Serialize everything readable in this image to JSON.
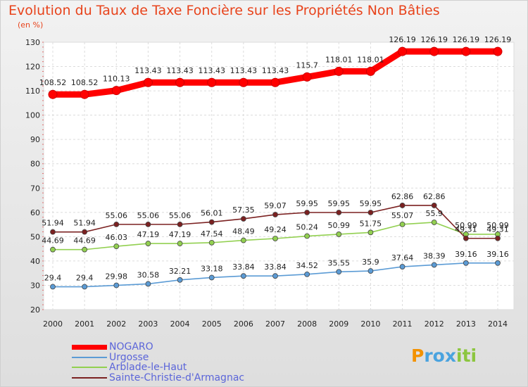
{
  "header": {
    "title": "Evolution du Taux de Taxe Foncière sur les Propriétés Non Bâties",
    "unit": "(en %)"
  },
  "chart_data": {
    "type": "line",
    "title": "Evolution du Taux de Taxe Foncière sur les Propriétés Non Bâties",
    "ylabel": "(en %)",
    "xlabel": "",
    "ylim": [
      20,
      130
    ],
    "yticks": [
      20,
      30,
      40,
      50,
      60,
      70,
      80,
      90,
      100,
      110,
      120,
      130
    ],
    "grid": true,
    "legend_position": "bottom-left",
    "x": [
      "2000",
      "2001",
      "2002",
      "2003",
      "2004",
      "2005",
      "2006",
      "2007",
      "2008",
      "2009",
      "2010",
      "2011",
      "2012",
      "2013",
      "2014"
    ],
    "series": [
      {
        "name": "NOGARO",
        "color": "#ff0000",
        "values": [
          108.52,
          108.52,
          110.13,
          113.43,
          113.43,
          113.43,
          113.43,
          113.43,
          115.7,
          118.01,
          118.01,
          126.19,
          126.19,
          126.19,
          126.19
        ],
        "labels": [
          "108.52",
          "108.52",
          "110.13",
          "113.43",
          "113.43",
          "113.43",
          "113.43",
          "113.43",
          "115.7",
          "118.01",
          "118.01",
          "126.19",
          "126.19",
          "126.19",
          "126.19"
        ]
      },
      {
        "name": "Urgosse",
        "color": "#5b9bd5",
        "values": [
          29.4,
          29.4,
          29.98,
          30.58,
          32.21,
          33.18,
          33.84,
          33.84,
          34.52,
          35.55,
          35.9,
          37.64,
          38.39,
          39.16,
          39.16
        ],
        "labels": [
          "29.4",
          "29.4",
          "29.98",
          "30.58",
          "32.21",
          "33.18",
          "33.84",
          "33.84",
          "34.52",
          "35.55",
          "35.9",
          "37.64",
          "38.39",
          "39.16",
          "39.16"
        ]
      },
      {
        "name": "Arblade-le-Haut",
        "color": "#92d050",
        "values": [
          44.69,
          44.69,
          46.03,
          47.19,
          47.19,
          47.54,
          48.49,
          49.24,
          50.24,
          50.99,
          51.75,
          55.07,
          55.9,
          50.99,
          50.99
        ],
        "labels": [
          "44.69",
          "44.69",
          "46.03",
          "47.19",
          "47.19",
          "47.54",
          "48.49",
          "49.24",
          "50.24",
          "50.99",
          "51.75",
          "55.07",
          "55.9",
          "50.99",
          "50.99"
        ]
      },
      {
        "name": "Sainte-Christie-d'Armagnac",
        "color": "#7b2121",
        "values": [
          51.94,
          51.94,
          55.06,
          55.06,
          55.06,
          56.01,
          57.35,
          59.07,
          59.95,
          59.95,
          59.95,
          62.86,
          62.86,
          49.31,
          49.31
        ],
        "labels": [
          "51.94",
          "51.94",
          "55.06",
          "55.06",
          "55.06",
          "56.01",
          "57.35",
          "59.07",
          "59.95",
          "59.95",
          "59.95",
          "62.86",
          "62.86",
          "49.31",
          "49.31"
        ]
      }
    ]
  },
  "legend": {
    "items": [
      {
        "label": "NOGARO",
        "color": "#ff0000"
      },
      {
        "label": "Urgosse",
        "color": "#5b9bd5"
      },
      {
        "label": "Arblade-le-Haut",
        "color": "#92d050"
      },
      {
        "label": "Sainte-Christie-d'Armagnac",
        "color": "#7b2121"
      }
    ]
  },
  "logo": {
    "letters": [
      "P",
      "r",
      "o",
      "x",
      "i",
      "t",
      "i"
    ],
    "colors": [
      "#f39200",
      "#4aa3df",
      "#4aa3df",
      "#4aa3df",
      "#8cc63f",
      "#8cc63f",
      "#8cc63f"
    ]
  }
}
